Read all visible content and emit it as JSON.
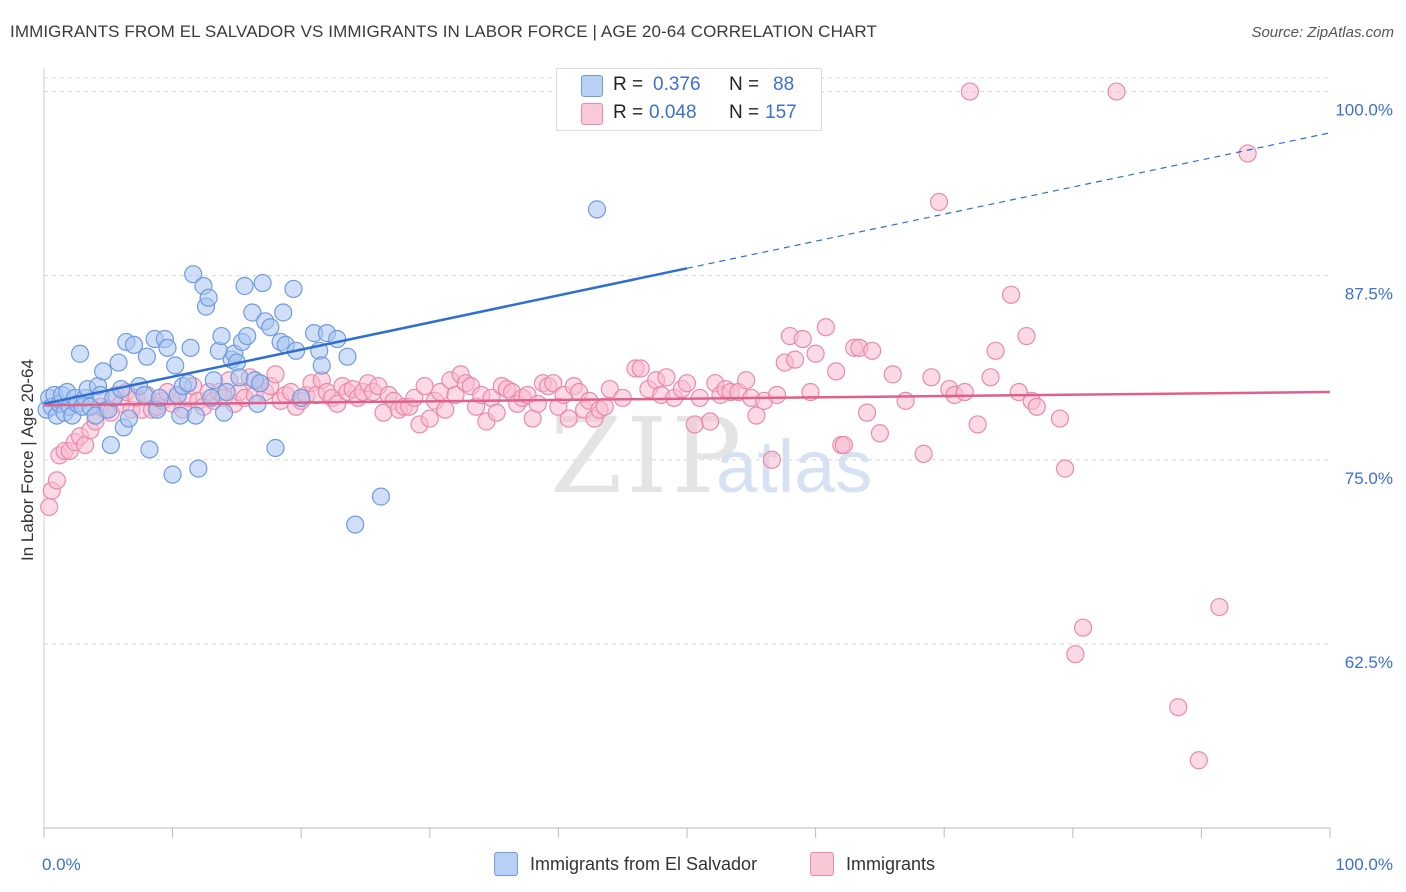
{
  "chart_data": {
    "type": "scatter",
    "title": "IMMIGRANTS FROM EL SALVADOR VS IMMIGRANTS IN LABOR FORCE | AGE 20-64 CORRELATION CHART",
    "source": "Source: ZipAtlas.com",
    "xlabel": "",
    "ylabel": "In Labor Force | Age 20-64",
    "xlim": [
      0,
      100
    ],
    "ylim": [
      50,
      101.6
    ],
    "x_tick_labels": {
      "min": "0.0%",
      "max": "100.0%"
    },
    "y_ticks": [
      {
        "value": 100,
        "label": "100.0%"
      },
      {
        "value": 87.5,
        "label": "87.5%"
      },
      {
        "value": 75,
        "label": "75.0%"
      },
      {
        "value": 62.5,
        "label": "62.5%"
      }
    ],
    "watermark": {
      "zip": "ZIP",
      "atlas": "atlas"
    },
    "colors": {
      "blue_fill": "#a9c5f0",
      "blue_stroke": "#6f9be0",
      "blue_line": "#2f6fd0",
      "pink_fill": "#f7bccf",
      "pink_stroke": "#ea8aaa",
      "pink_line": "#e0608c",
      "value_text": "#3b6fd1",
      "grid": "#d8d8d8"
    },
    "stats": [
      {
        "r_label": "R =",
        "r": "0.376",
        "n_label": "N =",
        "n": "88"
      },
      {
        "r_label": "R =",
        "r": "0.048",
        "n_label": "N =",
        "n": "157"
      }
    ],
    "series": [
      {
        "name": "Immigrants from El Salvador",
        "color": "blue",
        "trend": {
          "x0": 0,
          "y0": 78.8,
          "x1": 50,
          "y1": 88.0,
          "dash_to_x": 100,
          "dash_y": 97.2
        },
        "points": [
          [
            0.2,
            78.4
          ],
          [
            0.4,
            79.2
          ],
          [
            0.6,
            78.6
          ],
          [
            0.8,
            79.4
          ],
          [
            1.0,
            78.0
          ],
          [
            1.2,
            78.8
          ],
          [
            1.4,
            79.4
          ],
          [
            1.6,
            78.2
          ],
          [
            1.8,
            79.6
          ],
          [
            2.0,
            78.6
          ],
          [
            2.2,
            78.0
          ],
          [
            2.4,
            79.2
          ],
          [
            2.6,
            78.8
          ],
          [
            2.8,
            82.2
          ],
          [
            3.0,
            78.6
          ],
          [
            3.2,
            79.2
          ],
          [
            3.4,
            79.8
          ],
          [
            3.6,
            78.6
          ],
          [
            4.0,
            78.0
          ],
          [
            4.2,
            80.0
          ],
          [
            4.4,
            79.4
          ],
          [
            4.6,
            81.0
          ],
          [
            5.0,
            78.4
          ],
          [
            5.2,
            76.0
          ],
          [
            5.4,
            79.2
          ],
          [
            5.8,
            81.6
          ],
          [
            6.0,
            79.8
          ],
          [
            6.2,
            77.2
          ],
          [
            6.4,
            83.0
          ],
          [
            6.6,
            77.8
          ],
          [
            7.0,
            82.8
          ],
          [
            7.4,
            80.0
          ],
          [
            7.8,
            79.4
          ],
          [
            8.0,
            82.0
          ],
          [
            8.2,
            75.7
          ],
          [
            8.6,
            83.2
          ],
          [
            8.8,
            78.4
          ],
          [
            9.0,
            79.2
          ],
          [
            9.4,
            83.2
          ],
          [
            9.6,
            82.6
          ],
          [
            10.0,
            74.0
          ],
          [
            10.2,
            81.4
          ],
          [
            10.4,
            79.4
          ],
          [
            10.6,
            78.0
          ],
          [
            10.8,
            80.0
          ],
          [
            11.2,
            80.2
          ],
          [
            11.4,
            82.6
          ],
          [
            11.6,
            87.6
          ],
          [
            11.8,
            78.0
          ],
          [
            12.0,
            74.4
          ],
          [
            12.4,
            86.8
          ],
          [
            12.6,
            85.4
          ],
          [
            12.8,
            86.0
          ],
          [
            13.0,
            79.2
          ],
          [
            13.2,
            80.4
          ],
          [
            13.6,
            82.4
          ],
          [
            13.8,
            83.4
          ],
          [
            14.0,
            78.2
          ],
          [
            14.2,
            79.6
          ],
          [
            14.6,
            81.8
          ],
          [
            14.8,
            82.2
          ],
          [
            15.0,
            81.6
          ],
          [
            15.2,
            80.6
          ],
          [
            15.4,
            83.0
          ],
          [
            15.6,
            86.8
          ],
          [
            15.8,
            83.4
          ],
          [
            16.2,
            85.0
          ],
          [
            16.4,
            80.4
          ],
          [
            16.6,
            78.8
          ],
          [
            16.8,
            80.2
          ],
          [
            17.0,
            87.0
          ],
          [
            17.2,
            84.4
          ],
          [
            17.6,
            84.0
          ],
          [
            18.0,
            75.8
          ],
          [
            18.4,
            83.0
          ],
          [
            18.6,
            85.0
          ],
          [
            18.8,
            82.8
          ],
          [
            19.4,
            86.6
          ],
          [
            19.6,
            82.4
          ],
          [
            20.0,
            79.2
          ],
          [
            21.0,
            83.6
          ],
          [
            21.4,
            82.4
          ],
          [
            21.6,
            81.4
          ],
          [
            22.0,
            83.6
          ],
          [
            22.8,
            83.2
          ],
          [
            23.6,
            82.0
          ],
          [
            24.2,
            70.6
          ],
          [
            26.2,
            72.5
          ],
          [
            43.0,
            92.0
          ]
        ]
      },
      {
        "name": "Immigrants",
        "color": "pink",
        "trend": {
          "x0": 0,
          "y0": 78.7,
          "x1": 100,
          "y1": 79.6
        },
        "points": [
          [
            0.4,
            71.8
          ],
          [
            0.6,
            72.9
          ],
          [
            1.0,
            73.6
          ],
          [
            1.2,
            75.3
          ],
          [
            1.6,
            75.6
          ],
          [
            2.0,
            75.6
          ],
          [
            2.4,
            76.2
          ],
          [
            2.8,
            76.6
          ],
          [
            3.2,
            76.0
          ],
          [
            3.6,
            77.0
          ],
          [
            4.0,
            77.6
          ],
          [
            4.4,
            78.6
          ],
          [
            4.8,
            78.4
          ],
          [
            5.2,
            78.2
          ],
          [
            5.6,
            79.4
          ],
          [
            6.0,
            78.8
          ],
          [
            6.4,
            79.6
          ],
          [
            6.8,
            78.4
          ],
          [
            7.2,
            79.2
          ],
          [
            7.6,
            78.4
          ],
          [
            8.0,
            79.4
          ],
          [
            8.4,
            78.4
          ],
          [
            8.8,
            78.6
          ],
          [
            9.2,
            79.0
          ],
          [
            9.6,
            79.6
          ],
          [
            10.0,
            78.8
          ],
          [
            10.4,
            79.4
          ],
          [
            10.8,
            78.4
          ],
          [
            11.2,
            79.2
          ],
          [
            11.6,
            80.0
          ],
          [
            12.0,
            79.0
          ],
          [
            12.4,
            78.6
          ],
          [
            12.8,
            79.6
          ],
          [
            13.2,
            79.0
          ],
          [
            13.6,
            79.6
          ],
          [
            14.0,
            79.2
          ],
          [
            14.4,
            80.4
          ],
          [
            14.8,
            78.8
          ],
          [
            15.2,
            79.6
          ],
          [
            15.6,
            79.2
          ],
          [
            16.0,
            80.6
          ],
          [
            16.4,
            79.4
          ],
          [
            16.8,
            80.2
          ],
          [
            17.2,
            79.6
          ],
          [
            17.6,
            80.0
          ],
          [
            18.0,
            80.8
          ],
          [
            18.4,
            79.0
          ],
          [
            18.8,
            79.4
          ],
          [
            19.2,
            79.6
          ],
          [
            19.6,
            78.6
          ],
          [
            20.0,
            79.0
          ],
          [
            20.4,
            79.4
          ],
          [
            20.8,
            80.2
          ],
          [
            21.2,
            79.4
          ],
          [
            21.6,
            80.4
          ],
          [
            22.0,
            79.6
          ],
          [
            22.4,
            79.2
          ],
          [
            22.8,
            78.8
          ],
          [
            23.2,
            80.0
          ],
          [
            23.6,
            79.6
          ],
          [
            24.0,
            79.8
          ],
          [
            24.4,
            79.2
          ],
          [
            24.8,
            79.6
          ],
          [
            25.2,
            80.2
          ],
          [
            25.6,
            79.6
          ],
          [
            26.0,
            80.0
          ],
          [
            26.4,
            78.2
          ],
          [
            26.8,
            79.4
          ],
          [
            27.2,
            79.0
          ],
          [
            27.6,
            78.4
          ],
          [
            28.0,
            78.6
          ],
          [
            28.4,
            78.6
          ],
          [
            28.8,
            79.2
          ],
          [
            29.2,
            77.4
          ],
          [
            29.6,
            80.0
          ],
          [
            30.0,
            77.8
          ],
          [
            30.4,
            79.0
          ],
          [
            30.8,
            79.6
          ],
          [
            31.2,
            78.4
          ],
          [
            31.6,
            80.4
          ],
          [
            32.0,
            79.4
          ],
          [
            32.4,
            80.8
          ],
          [
            32.8,
            80.2
          ],
          [
            33.2,
            80.0
          ],
          [
            33.6,
            78.6
          ],
          [
            34.0,
            79.4
          ],
          [
            34.4,
            77.6
          ],
          [
            34.8,
            79.2
          ],
          [
            35.2,
            78.2
          ],
          [
            35.6,
            80.0
          ],
          [
            36.0,
            79.8
          ],
          [
            36.4,
            79.6
          ],
          [
            36.8,
            78.8
          ],
          [
            37.2,
            79.2
          ],
          [
            37.6,
            79.4
          ],
          [
            38.0,
            77.8
          ],
          [
            38.4,
            78.8
          ],
          [
            38.8,
            80.2
          ],
          [
            39.2,
            80.0
          ],
          [
            39.6,
            80.2
          ],
          [
            40.0,
            78.6
          ],
          [
            40.4,
            79.4
          ],
          [
            40.8,
            77.8
          ],
          [
            41.2,
            80.0
          ],
          [
            41.6,
            79.6
          ],
          [
            42.0,
            78.4
          ],
          [
            42.4,
            79.0
          ],
          [
            42.8,
            77.8
          ],
          [
            43.2,
            78.4
          ],
          [
            43.6,
            78.6
          ],
          [
            44.0,
            79.8
          ],
          [
            45.0,
            79.2
          ],
          [
            46.0,
            81.2
          ],
          [
            46.4,
            81.2
          ],
          [
            47.0,
            79.8
          ],
          [
            47.6,
            80.4
          ],
          [
            48.0,
            79.4
          ],
          [
            48.4,
            80.6
          ],
          [
            49.0,
            79.2
          ],
          [
            49.6,
            79.8
          ],
          [
            50.0,
            80.2
          ],
          [
            50.6,
            77.4
          ],
          [
            51.0,
            79.2
          ],
          [
            51.8,
            77.6
          ],
          [
            52.2,
            80.2
          ],
          [
            52.6,
            79.4
          ],
          [
            53.0,
            79.8
          ],
          [
            53.4,
            79.6
          ],
          [
            54.0,
            79.6
          ],
          [
            54.6,
            80.4
          ],
          [
            55.0,
            79.2
          ],
          [
            55.4,
            78.0
          ],
          [
            56.0,
            79.0
          ],
          [
            56.6,
            75.0
          ],
          [
            57.0,
            79.4
          ],
          [
            57.6,
            81.6
          ],
          [
            58.0,
            83.4
          ],
          [
            58.4,
            81.8
          ],
          [
            59.0,
            83.2
          ],
          [
            59.6,
            79.6
          ],
          [
            60.0,
            82.2
          ],
          [
            60.8,
            84.0
          ],
          [
            61.6,
            81.0
          ],
          [
            62.0,
            76.0
          ],
          [
            62.2,
            76.0
          ],
          [
            63.0,
            82.6
          ],
          [
            63.4,
            82.6
          ],
          [
            64.0,
            78.2
          ],
          [
            64.4,
            82.4
          ],
          [
            65.0,
            76.8
          ],
          [
            66.0,
            80.8
          ],
          [
            67.0,
            79.0
          ],
          [
            68.4,
            75.4
          ],
          [
            69.0,
            80.6
          ],
          [
            69.6,
            92.5
          ],
          [
            70.4,
            79.8
          ],
          [
            70.8,
            79.4
          ],
          [
            71.6,
            79.6
          ],
          [
            72.0,
            100.0
          ],
          [
            72.6,
            77.4
          ],
          [
            73.6,
            80.6
          ],
          [
            74.0,
            82.4
          ],
          [
            75.2,
            86.2
          ],
          [
            75.8,
            79.6
          ],
          [
            76.4,
            83.4
          ],
          [
            76.8,
            79.0
          ],
          [
            77.2,
            78.6
          ],
          [
            79.0,
            77.8
          ],
          [
            79.4,
            74.4
          ],
          [
            80.2,
            61.8
          ],
          [
            80.8,
            63.6
          ],
          [
            83.4,
            100.0
          ],
          [
            88.2,
            58.2
          ],
          [
            89.8,
            54.6
          ],
          [
            91.4,
            65.0
          ],
          [
            93.6,
            95.8
          ]
        ]
      }
    ]
  }
}
